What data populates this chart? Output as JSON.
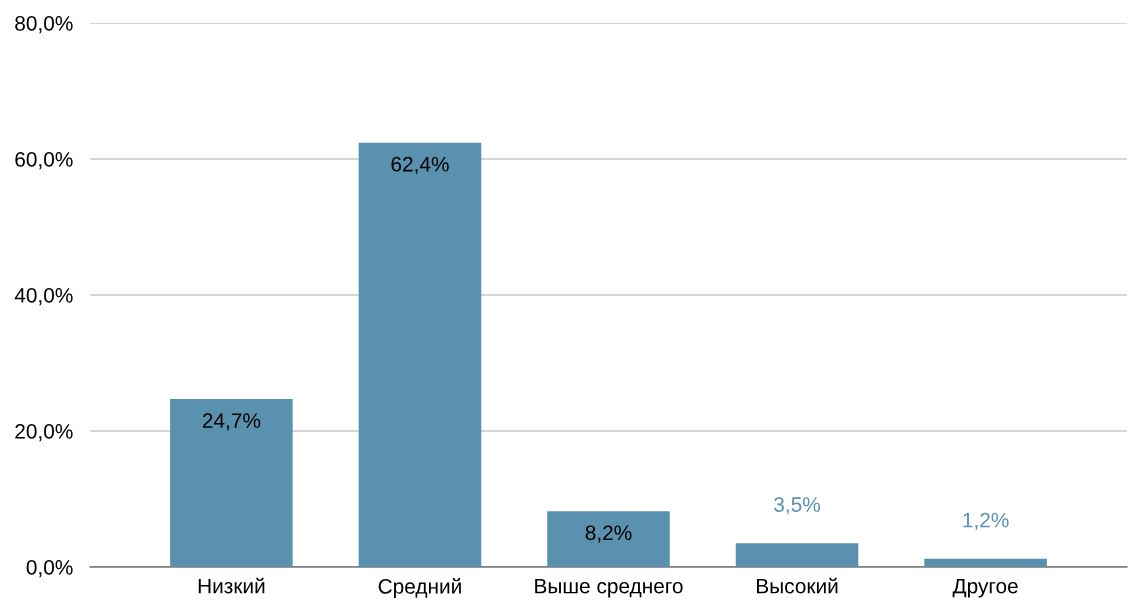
{
  "chart_data": {
    "type": "bar",
    "categories": [
      "Низкий",
      "Средний",
      "Выше среднего",
      "Высокий",
      "Другое"
    ],
    "values": [
      24.7,
      62.4,
      8.2,
      3.5,
      1.2
    ],
    "value_labels": [
      "24,7%",
      "62,4%",
      "8,2%",
      "3,5%",
      "1,2%"
    ],
    "color": "#5a91ae",
    "ylim": [
      0,
      80
    ],
    "yticks": [
      {
        "value": 0,
        "label": "0,0%"
      },
      {
        "value": 20,
        "label": "20,0%"
      },
      {
        "value": 40,
        "label": "40,0%"
      },
      {
        "value": 60,
        "label": "60,0%"
      },
      {
        "value": 80,
        "label": "80,0%"
      }
    ],
    "grid": "y"
  }
}
